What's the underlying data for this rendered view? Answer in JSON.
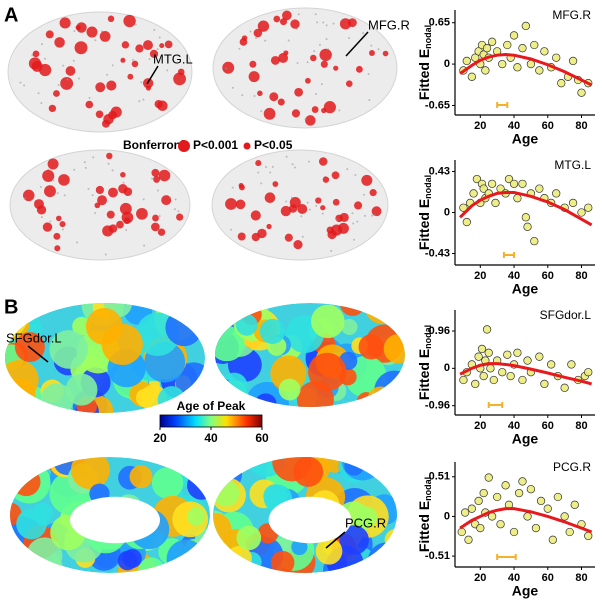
{
  "panel_labels": [
    "A",
    "B"
  ],
  "annotations": [
    "MTG.L",
    "MFG.R",
    "SFGdor.L",
    "PCG.R"
  ],
  "legend": {
    "title": "Bonferroni:",
    "items": [
      "P<0.001",
      "P<0.05"
    ],
    "color": "#e31a1c"
  },
  "colorbar": {
    "title": "Age of Peak",
    "lim": [
      20,
      60
    ],
    "ticks": [
      20,
      40,
      60
    ]
  },
  "chart_data": [
    {
      "type": "scatter",
      "title": "MFG.R",
      "xlabel": "Age",
      "ylabel": "Fitted E",
      "ylabel_sub": "nodal",
      "xlim": [
        5,
        88
      ],
      "xticks": [
        20,
        40,
        60,
        80
      ],
      "ylim": [
        -0.8,
        0.85
      ],
      "yticks": [
        0.65,
        0,
        -0.65
      ],
      "point_color": "#ecec7c",
      "fit_color": "#e8191c",
      "ci_color": "#f5b12a",
      "points": {
        "x": [
          10,
          12,
          15,
          17,
          19,
          20,
          21,
          22,
          23,
          24,
          25,
          27,
          30,
          33,
          36,
          38,
          40,
          42,
          45,
          47,
          50,
          52,
          55,
          58,
          62,
          65,
          68,
          72,
          75,
          78,
          80,
          84
        ],
        "y": [
          -0.1,
          0.05,
          -0.2,
          0.1,
          0.2,
          0.0,
          0.3,
          0.15,
          -0.1,
          0.25,
          0.1,
          0.35,
          0.2,
          0.0,
          0.3,
          0.1,
          0.45,
          -0.05,
          0.25,
          0.6,
          0.0,
          0.3,
          -0.1,
          0.2,
          -0.05,
          0.1,
          -0.3,
          -0.2,
          0.05,
          -0.25,
          -0.45,
          -0.3
        ]
      },
      "fit": {
        "x": [
          8,
          15,
          20,
          25,
          30,
          35,
          40,
          50,
          60,
          70,
          80,
          86
        ],
        "y": [
          -0.15,
          -0.02,
          0.06,
          0.11,
          0.14,
          0.15,
          0.14,
          0.08,
          -0.01,
          -0.12,
          -0.25,
          -0.33
        ]
      },
      "peak_ci": [
        30,
        36
      ]
    },
    {
      "type": "scatter",
      "title": "MTG.L",
      "xlabel": "Age",
      "ylabel": "Fitted E",
      "ylabel_sub": "nodal",
      "xlim": [
        5,
        88
      ],
      "xticks": [
        20,
        40,
        60,
        80
      ],
      "ylim": [
        -0.55,
        0.55
      ],
      "yticks": [
        0.43,
        0,
        -0.43
      ],
      "point_color": "#ecec7c",
      "fit_color": "#e8191c",
      "ci_color": "#f5b12a",
      "points": {
        "x": [
          10,
          12,
          14,
          16,
          18,
          20,
          21,
          22,
          23,
          25,
          27,
          29,
          32,
          35,
          37,
          40,
          42,
          45,
          47,
          48,
          50,
          52,
          55,
          58,
          62,
          65,
          70,
          75,
          80,
          84
        ],
        "y": [
          0.05,
          -0.1,
          0.1,
          0.2,
          0.35,
          0.1,
          0.3,
          0.25,
          0.15,
          0.2,
          0.3,
          0.1,
          0.25,
          0.2,
          0.35,
          0.3,
          0.15,
          0.3,
          -0.05,
          -0.15,
          0.2,
          -0.3,
          0.25,
          0.15,
          0.1,
          0.2,
          0.05,
          0.1,
          0.0,
          0.05
        ]
      },
      "fit": {
        "x": [
          8,
          15,
          20,
          25,
          30,
          35,
          40,
          50,
          60,
          70,
          80,
          86
        ],
        "y": [
          -0.05,
          0.07,
          0.13,
          0.17,
          0.2,
          0.21,
          0.21,
          0.17,
          0.11,
          0.03,
          -0.07,
          -0.13
        ]
      },
      "peak_ci": [
        34,
        40
      ]
    },
    {
      "type": "scatter",
      "title": "SFGdor.L",
      "xlabel": "Age",
      "ylabel": "Fitted E",
      "ylabel_sub": "nodal",
      "xlim": [
        5,
        88
      ],
      "xticks": [
        20,
        40,
        60,
        80
      ],
      "ylim": [
        -1.2,
        1.5
      ],
      "yticks": [
        0.96,
        0,
        -0.96
      ],
      "point_color": "#ecec7c",
      "fit_color": "#e8191c",
      "ci_color": "#f5b12a",
      "points": {
        "x": [
          10,
          12,
          15,
          17,
          19,
          20,
          21,
          22,
          23,
          24,
          25,
          26,
          28,
          30,
          33,
          36,
          38,
          40,
          42,
          45,
          48,
          50,
          55,
          58,
          62,
          66,
          70,
          74,
          78,
          82,
          84
        ],
        "y": [
          -0.3,
          -0.1,
          0.1,
          -0.4,
          0.3,
          0.0,
          0.5,
          -0.2,
          0.2,
          1.0,
          0.4,
          0.0,
          -0.3,
          0.2,
          -0.1,
          0.35,
          -0.2,
          0.1,
          0.4,
          -0.3,
          0.2,
          -0.1,
          0.3,
          -0.4,
          0.1,
          -0.2,
          -0.5,
          0.1,
          -0.3,
          -0.2,
          -0.1
        ]
      },
      "fit": {
        "x": [
          8,
          15,
          20,
          25,
          30,
          35,
          40,
          50,
          60,
          70,
          80,
          86
        ],
        "y": [
          -0.15,
          0.0,
          0.08,
          0.12,
          0.12,
          0.1,
          0.07,
          -0.02,
          -0.12,
          -0.23,
          -0.33,
          -0.4
        ]
      },
      "peak_ci": [
        25,
        33
      ]
    },
    {
      "type": "scatter",
      "title": "PCG.R",
      "xlabel": "Age",
      "ylabel": "Fitted E",
      "ylabel_sub": "nodal",
      "xlim": [
        5,
        88
      ],
      "xticks": [
        20,
        40,
        60,
        80
      ],
      "ylim": [
        -0.65,
        0.7
      ],
      "yticks": [
        0.51,
        0,
        -0.51
      ],
      "point_color": "#ecec7c",
      "fit_color": "#e8191c",
      "ci_color": "#f5b12a",
      "points": {
        "x": [
          9,
          11,
          13,
          15,
          17,
          19,
          20,
          22,
          23,
          25,
          27,
          30,
          32,
          35,
          37,
          40,
          43,
          45,
          48,
          50,
          53,
          56,
          60,
          63,
          66,
          70,
          73,
          76,
          80,
          84
        ],
        "y": [
          -0.2,
          0.05,
          -0.3,
          0.1,
          -0.1,
          0.2,
          -0.15,
          0.3,
          0.05,
          0.5,
          0.0,
          0.25,
          -0.1,
          0.4,
          0.15,
          -0.2,
          0.3,
          0.45,
          0.0,
          0.35,
          -0.15,
          0.2,
          0.1,
          -0.3,
          0.25,
          0.0,
          -0.2,
          0.15,
          -0.1,
          -0.25
        ]
      },
      "fit": {
        "x": [
          8,
          15,
          20,
          25,
          30,
          35,
          40,
          50,
          60,
          70,
          80,
          86
        ],
        "y": [
          -0.15,
          -0.05,
          0.0,
          0.05,
          0.08,
          0.1,
          0.1,
          0.06,
          0.0,
          -0.07,
          -0.15,
          -0.2
        ]
      },
      "peak_ci": [
        30,
        41
      ]
    }
  ]
}
